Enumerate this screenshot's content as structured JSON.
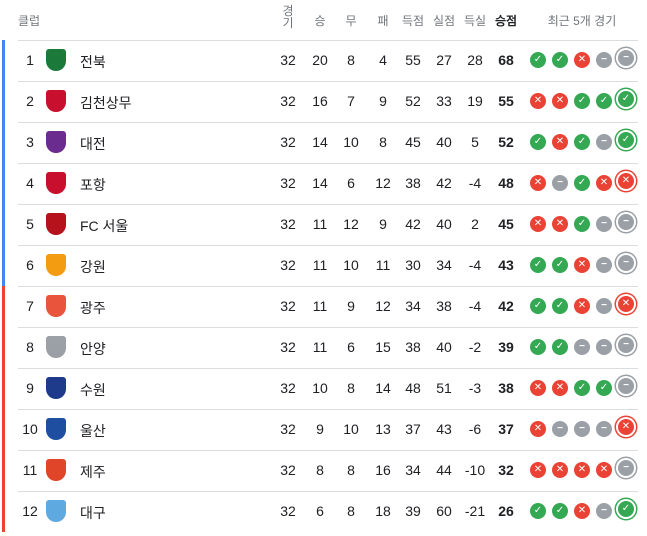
{
  "header": {
    "club": "클럽",
    "played": "경기",
    "won": "승",
    "drawn": "무",
    "lost": "패",
    "gf": "득점",
    "ga": "실점",
    "gd": "득실",
    "points": "승점",
    "form": "최근 5개 경기"
  },
  "colors": {
    "top_group": "#4285f4",
    "bottom_group": "#ea4335",
    "win": "#34a853",
    "loss": "#ea4335",
    "draw": "#9aa0a6"
  },
  "teams": [
    {
      "rank": "1",
      "name": "전북",
      "logo_color": "#1b7a3a",
      "p": "32",
      "w": "20",
      "d": "8",
      "l": "4",
      "gf": "55",
      "ga": "27",
      "gd": "28",
      "pts": "68",
      "form": [
        "W",
        "W",
        "L",
        "D",
        "D"
      ]
    },
    {
      "rank": "2",
      "name": "김천상무",
      "logo_color": "#c8102e",
      "p": "32",
      "w": "16",
      "d": "7",
      "l": "9",
      "gf": "52",
      "ga": "33",
      "gd": "19",
      "pts": "55",
      "form": [
        "L",
        "L",
        "W",
        "W",
        "W"
      ]
    },
    {
      "rank": "3",
      "name": "대전",
      "logo_color": "#6b2c8f",
      "p": "32",
      "w": "14",
      "d": "10",
      "l": "8",
      "gf": "45",
      "ga": "40",
      "gd": "5",
      "pts": "52",
      "form": [
        "W",
        "L",
        "W",
        "D",
        "W"
      ]
    },
    {
      "rank": "4",
      "name": "포항",
      "logo_color": "#c8102e",
      "p": "32",
      "w": "14",
      "d": "6",
      "l": "12",
      "gf": "38",
      "ga": "42",
      "gd": "-4",
      "pts": "48",
      "form": [
        "L",
        "D",
        "W",
        "L",
        "L"
      ]
    },
    {
      "rank": "5",
      "name": "FC 서울",
      "logo_color": "#b5121b",
      "p": "32",
      "w": "11",
      "d": "12",
      "l": "9",
      "gf": "42",
      "ga": "40",
      "gd": "2",
      "pts": "45",
      "form": [
        "L",
        "L",
        "W",
        "D",
        "D"
      ]
    },
    {
      "rank": "6",
      "name": "강원",
      "logo_color": "#f39c12",
      "p": "32",
      "w": "11",
      "d": "10",
      "l": "11",
      "gf": "30",
      "ga": "34",
      "gd": "-4",
      "pts": "43",
      "form": [
        "W",
        "W",
        "L",
        "D",
        "D"
      ]
    },
    {
      "rank": "7",
      "name": "광주",
      "logo_color": "#e8543c",
      "p": "32",
      "w": "11",
      "d": "9",
      "l": "12",
      "gf": "34",
      "ga": "38",
      "gd": "-4",
      "pts": "42",
      "form": [
        "W",
        "W",
        "L",
        "D",
        "L"
      ]
    },
    {
      "rank": "8",
      "name": "안양",
      "logo_color": "#9aa0a6",
      "p": "32",
      "w": "11",
      "d": "6",
      "l": "15",
      "gf": "38",
      "ga": "40",
      "gd": "-2",
      "pts": "39",
      "form": [
        "W",
        "W",
        "D",
        "D",
        "D"
      ]
    },
    {
      "rank": "9",
      "name": "수원",
      "logo_color": "#1e3a8a",
      "p": "32",
      "w": "10",
      "d": "8",
      "l": "14",
      "gf": "48",
      "ga": "51",
      "gd": "-3",
      "pts": "38",
      "form": [
        "L",
        "L",
        "W",
        "W",
        "D"
      ]
    },
    {
      "rank": "10",
      "name": "울산",
      "logo_color": "#1d4ea0",
      "p": "32",
      "w": "9",
      "d": "10",
      "l": "13",
      "gf": "37",
      "ga": "43",
      "gd": "-6",
      "pts": "37",
      "form": [
        "L",
        "D",
        "D",
        "D",
        "L"
      ]
    },
    {
      "rank": "11",
      "name": "제주",
      "logo_color": "#e0452a",
      "p": "32",
      "w": "8",
      "d": "8",
      "l": "16",
      "gf": "34",
      "ga": "44",
      "gd": "-10",
      "pts": "32",
      "form": [
        "L",
        "L",
        "L",
        "L",
        "D"
      ]
    },
    {
      "rank": "12",
      "name": "대구",
      "logo_color": "#5da9e0",
      "p": "32",
      "w": "6",
      "d": "8",
      "l": "18",
      "gf": "39",
      "ga": "60",
      "gd": "-21",
      "pts": "26",
      "form": [
        "W",
        "W",
        "L",
        "D",
        "W"
      ]
    }
  ]
}
